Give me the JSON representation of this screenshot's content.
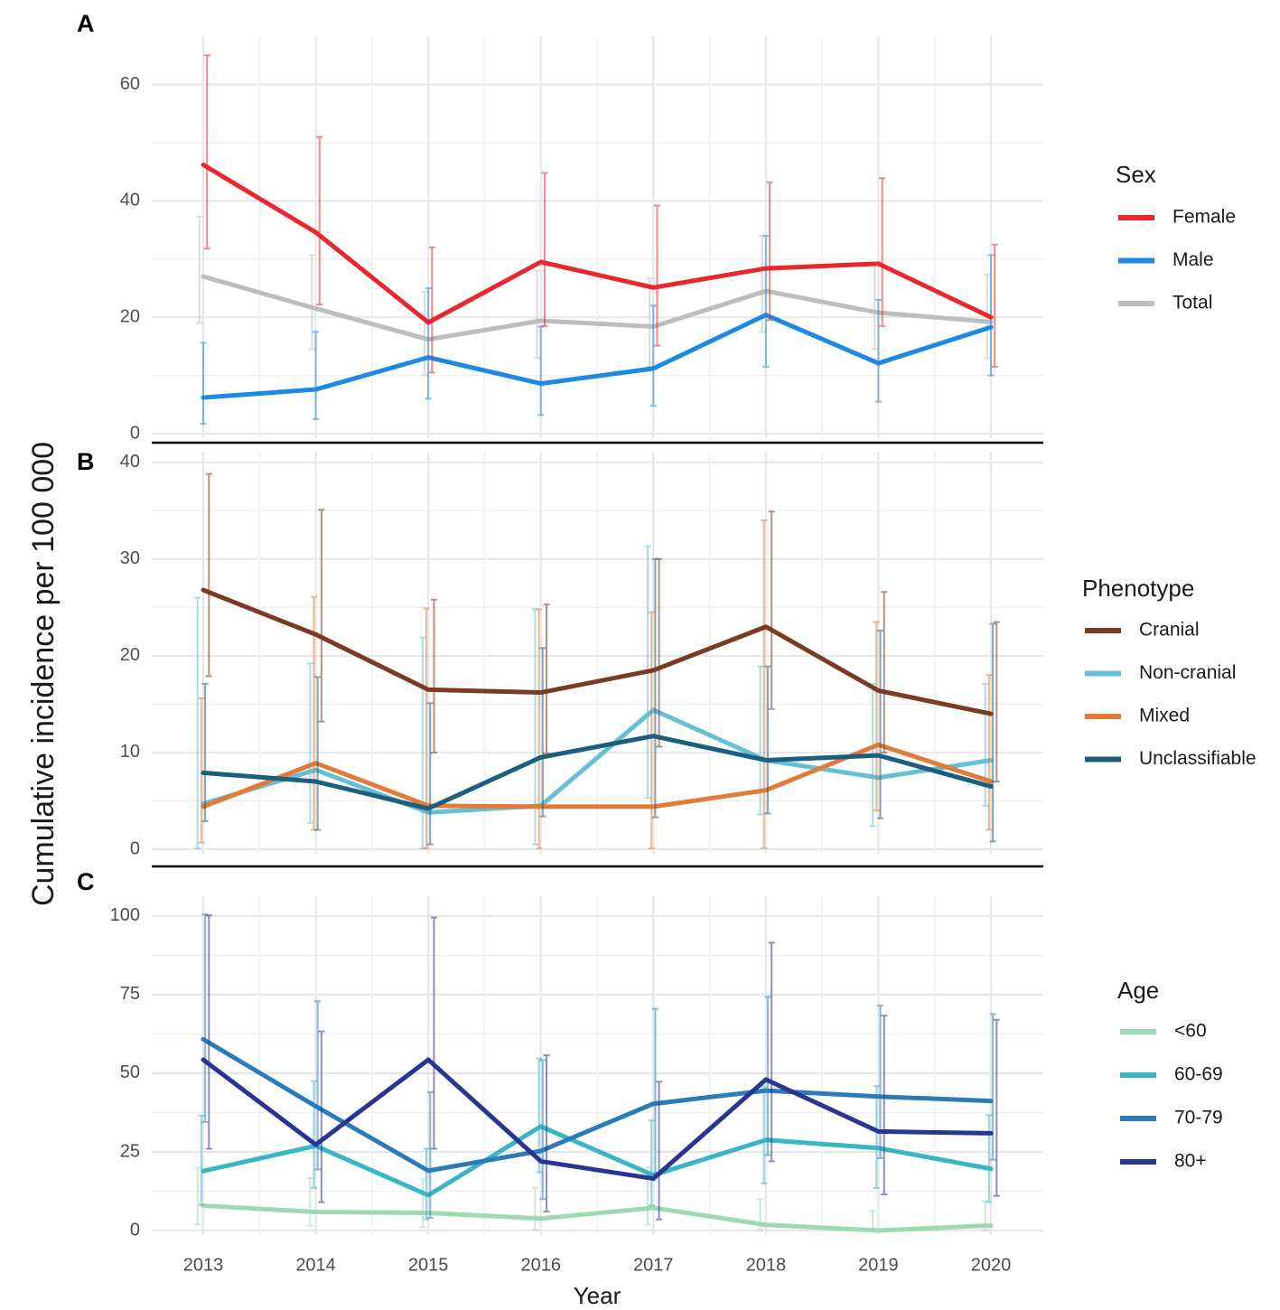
{
  "chart_data": {
    "type": "line",
    "ylabel": "Cumulative incidence per 100 000",
    "xlabel": "Year",
    "x": [
      2013,
      2014,
      2015,
      2016,
      2017,
      2018,
      2019,
      2020
    ],
    "panels": [
      {
        "letter": "A",
        "legend_title": "Sex",
        "ylim": [
          0,
          68
        ],
        "yticks": [
          0,
          20,
          40,
          60
        ],
        "series": [
          {
            "name": "Total",
            "color": "#bdbdbd",
            "values": [
              27,
              21.5,
              16.2,
              19.4,
              18.4,
              24.5,
              20.8,
              19.2
            ],
            "ci_low": [
              19,
              14.5,
              10,
              13,
              11.5,
              17.5,
              14.5,
              13
            ],
            "ci_high": [
              37.3,
              30.7,
              24.4,
              28,
              26.7,
              34,
              29.3,
              27.3
            ]
          },
          {
            "name": "Male",
            "color": "#1e88e5",
            "values": [
              6.2,
              7.6,
              13.1,
              8.6,
              11.2,
              20.4,
              12.1,
              18.3
            ],
            "ci_low": [
              1.7,
              2.5,
              6,
              3.2,
              4.8,
              11.5,
              5.5,
              10
            ],
            "ci_high": [
              15.6,
              17.5,
              25,
              18.4,
              22,
              34,
              23,
              30.7
            ]
          },
          {
            "name": "Female",
            "color": "#e8282e",
            "values": [
              46.2,
              34.6,
              19.1,
              29.5,
              25.1,
              28.4,
              29.2,
              20
            ],
            "ci_low": [
              31.8,
              22.2,
              10.5,
              18.5,
              15.1,
              19.5,
              18.5,
              11.5
            ],
            "ci_high": [
              65,
              51,
              32,
              44.8,
              39.2,
              43.2,
              43.9,
              32.5
            ]
          }
        ],
        "legend_order": [
          "Female",
          "Male",
          "Total"
        ]
      },
      {
        "letter": "B",
        "legend_title": "Phenotype",
        "ylim": [
          0,
          41
        ],
        "yticks": [
          0,
          10,
          20,
          30,
          40
        ],
        "series": [
          {
            "name": "Non-cranial",
            "color": "#67bfd4",
            "values": [
              4.7,
              8.2,
              3.8,
              4.5,
              14.4,
              9.2,
              7.4,
              9.2
            ],
            "ci_low": [
              0.1,
              2.7,
              0.1,
              0.5,
              5.3,
              3.6,
              2.4,
              4.5
            ],
            "ci_high": [
              26,
              19.2,
              21.9,
              24.8,
              31.3,
              18.9,
              17.1,
              17.1
            ]
          },
          {
            "name": "Mixed",
            "color": "#e07b39",
            "values": [
              4.4,
              8.9,
              4.5,
              4.4,
              4.4,
              6.1,
              10.8,
              7
            ],
            "ci_low": [
              0.7,
              2,
              0.1,
              0.1,
              0.1,
              0.1,
              4,
              2
            ],
            "ci_high": [
              15.6,
              26.1,
              24.9,
              24.8,
              24.5,
              34,
              23.5,
              18
            ]
          },
          {
            "name": "Unclassifiable",
            "color": "#1b5e80",
            "values": [
              7.9,
              7,
              4.2,
              9.5,
              11.7,
              9.2,
              9.7,
              6.5
            ],
            "ci_low": [
              2.9,
              2,
              0.5,
              3.4,
              3.3,
              3.7,
              3.2,
              0.8
            ],
            "ci_high": [
              17.1,
              17.8,
              15.1,
              20.8,
              30,
              18.9,
              22.6,
              23.3
            ]
          },
          {
            "name": "Cranial",
            "color": "#7b3a22",
            "values": [
              26.8,
              22.2,
              16.5,
              16.2,
              18.5,
              23,
              16.4,
              14
            ],
            "ci_low": [
              17.9,
              13.2,
              10,
              9.9,
              10.6,
              14.5,
              10,
              7
            ],
            "ci_high": [
              38.8,
              35.1,
              25.8,
              25.3,
              30,
              34.9,
              26.6,
              23.5
            ]
          }
        ],
        "legend_order": [
          "Cranial",
          "Non-cranial",
          "Mixed",
          "Unclassifiable"
        ]
      },
      {
        "letter": "C",
        "legend_title": "Age",
        "ylim": [
          0,
          106
        ],
        "yticks": [
          0,
          25,
          50,
          75,
          100
        ],
        "series": [
          {
            "name": "<60",
            "color": "#9dd9b3",
            "values": [
              7.9,
              5.9,
              5.6,
              3.8,
              7.2,
              1.8,
              0,
              1.6
            ],
            "ci_low": [
              2,
              1.5,
              1,
              0.3,
              2,
              0.1,
              0,
              0.1
            ],
            "ci_high": [
              20,
              16.7,
              16.3,
              13.6,
              20,
              10,
              6.2,
              9.4
            ]
          },
          {
            "name": "60-69",
            "color": "#39b5c4",
            "values": [
              18.9,
              26.9,
              11.2,
              33.1,
              17.6,
              28.8,
              26.2,
              19.6
            ],
            "ci_low": [
              8.2,
              13.5,
              3.5,
              18.5,
              8,
              15,
              13.5,
              9
            ],
            "ci_high": [
              36.5,
              47.5,
              26,
              54.7,
              35,
              45.8,
              45.9,
              36.7
            ]
          },
          {
            "name": "70-79",
            "color": "#2b7bb9",
            "values": [
              60.8,
              39.5,
              19,
              25.3,
              40.3,
              44.5,
              42.6,
              41.2
            ],
            "ci_low": [
              34.5,
              19.4,
              4,
              10,
              18,
              24,
              23,
              22.5
            ],
            "ci_high": [
              100.5,
              72.9,
              44,
              54.2,
              70.5,
              74.3,
              71.5,
              68.8
            ]
          },
          {
            "name": "80+",
            "color": "#2a3591",
            "values": [
              54.3,
              27.3,
              54.3,
              22,
              16.5,
              48,
              31.5,
              30.9
            ],
            "ci_low": [
              26,
              9,
              26,
              6,
              3.5,
              22,
              11.5,
              11
            ],
            "ci_high": [
              100.2,
              63.3,
              99.5,
              55.7,
              47.3,
              91.5,
              68.3,
              67
            ]
          }
        ],
        "legend_order": [
          "<60",
          "60-69",
          "70-79",
          "80+"
        ]
      }
    ]
  }
}
